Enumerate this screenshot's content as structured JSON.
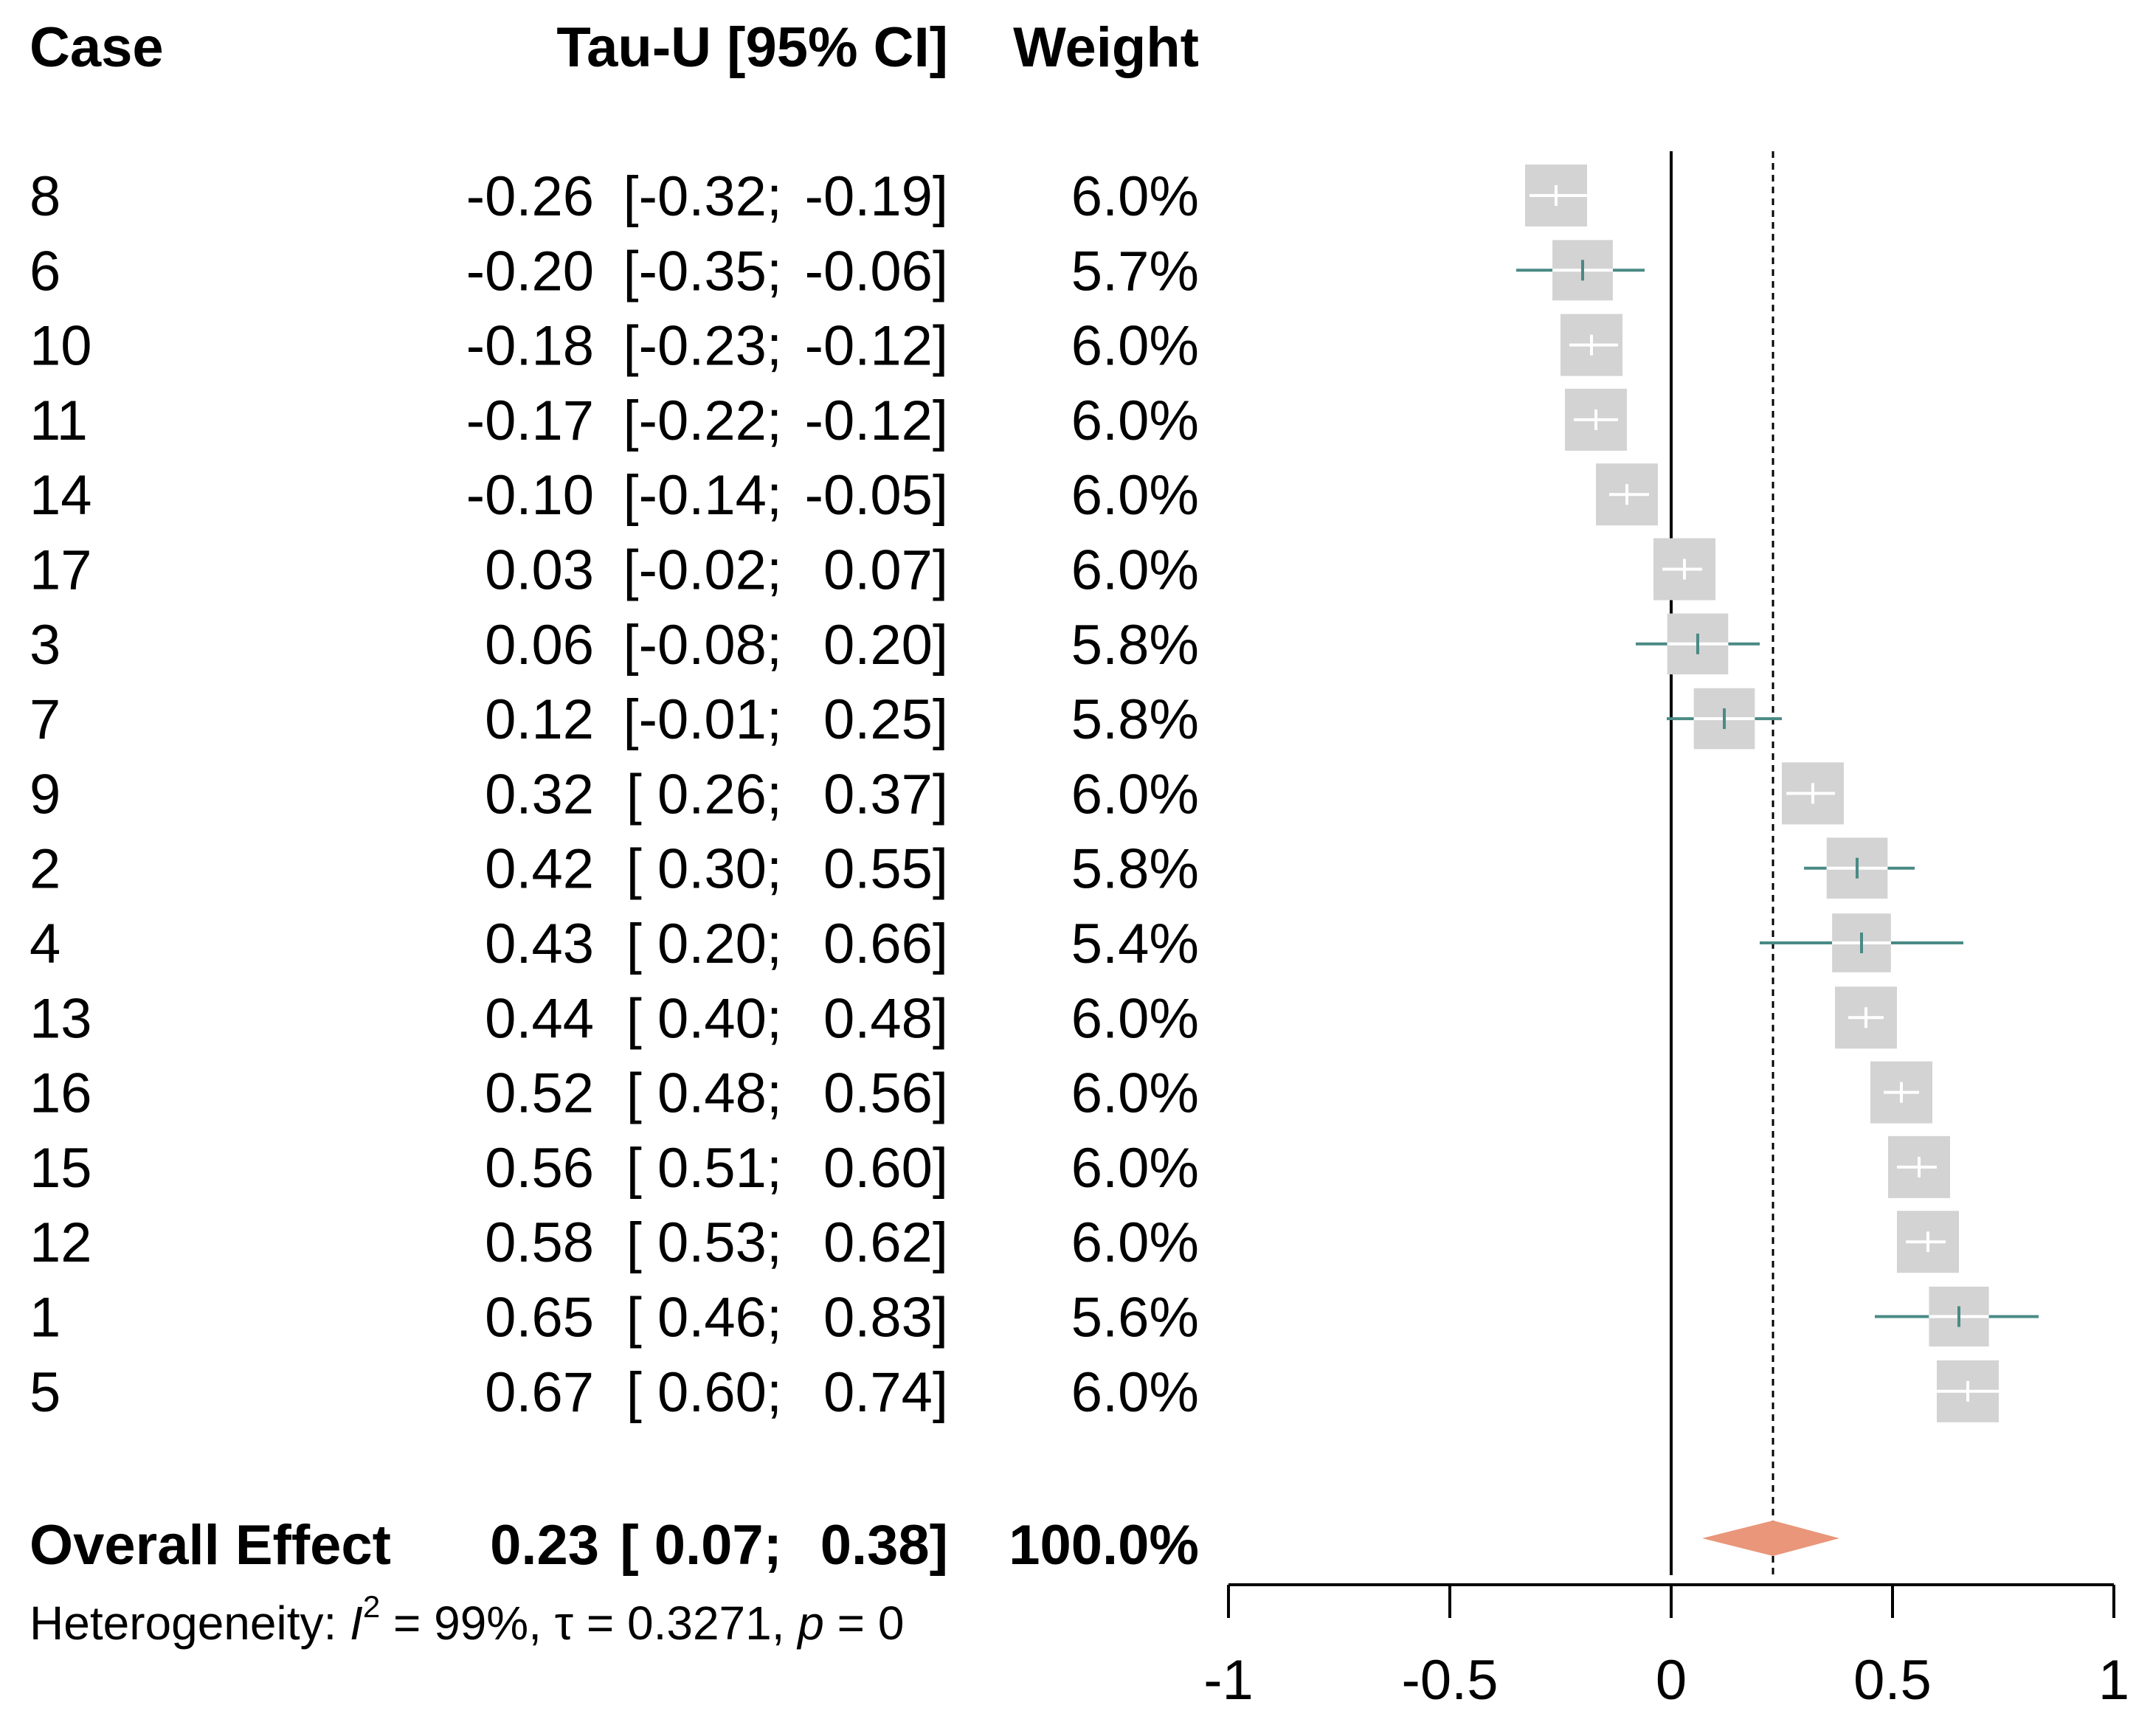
{
  "chart_data": {
    "type": "forest",
    "headers": {
      "case": "Case",
      "estimate": "Tau-U [95% CI]",
      "weight": "Weight"
    },
    "rows": [
      {
        "case": "8",
        "est": -0.26,
        "lo": -0.32,
        "hi": -0.19,
        "est_text": "-0.26",
        "lo_text": "[-0.32;",
        "hi_text": "-0.19]",
        "weight": "6.0%"
      },
      {
        "case": "6",
        "est": -0.2,
        "lo": -0.35,
        "hi": -0.06,
        "est_text": "-0.20",
        "lo_text": "[-0.35;",
        "hi_text": "-0.06]",
        "weight": "5.7%"
      },
      {
        "case": "10",
        "est": -0.18,
        "lo": -0.23,
        "hi": -0.12,
        "est_text": "-0.18",
        "lo_text": "[-0.23;",
        "hi_text": "-0.12]",
        "weight": "6.0%"
      },
      {
        "case": "11",
        "est": -0.17,
        "lo": -0.22,
        "hi": -0.12,
        "est_text": "-0.17",
        "lo_text": "[-0.22;",
        "hi_text": "-0.12]",
        "weight": "6.0%"
      },
      {
        "case": "14",
        "est": -0.1,
        "lo": -0.14,
        "hi": -0.05,
        "est_text": "-0.10",
        "lo_text": "[-0.14;",
        "hi_text": "-0.05]",
        "weight": "6.0%"
      },
      {
        "case": "17",
        "est": 0.03,
        "lo": -0.02,
        "hi": 0.07,
        "est_text": "0.03",
        "lo_text": "[-0.02;",
        "hi_text": "0.07]",
        "weight": "6.0%"
      },
      {
        "case": "3",
        "est": 0.06,
        "lo": -0.08,
        "hi": 0.2,
        "est_text": "0.06",
        "lo_text": "[-0.08;",
        "hi_text": "0.20]",
        "weight": "5.8%"
      },
      {
        "case": "7",
        "est": 0.12,
        "lo": -0.01,
        "hi": 0.25,
        "est_text": "0.12",
        "lo_text": "[-0.01;",
        "hi_text": "0.25]",
        "weight": "5.8%"
      },
      {
        "case": "9",
        "est": 0.32,
        "lo": 0.26,
        "hi": 0.37,
        "est_text": "0.32",
        "lo_text": "[ 0.26;",
        "hi_text": "0.37]",
        "weight": "6.0%"
      },
      {
        "case": "2",
        "est": 0.42,
        "lo": 0.3,
        "hi": 0.55,
        "est_text": "0.42",
        "lo_text": "[ 0.30;",
        "hi_text": "0.55]",
        "weight": "5.8%"
      },
      {
        "case": "4",
        "est": 0.43,
        "lo": 0.2,
        "hi": 0.66,
        "est_text": "0.43",
        "lo_text": "[ 0.20;",
        "hi_text": "0.66]",
        "weight": "5.4%"
      },
      {
        "case": "13",
        "est": 0.44,
        "lo": 0.4,
        "hi": 0.48,
        "est_text": "0.44",
        "lo_text": "[ 0.40;",
        "hi_text": "0.48]",
        "weight": "6.0%"
      },
      {
        "case": "16",
        "est": 0.52,
        "lo": 0.48,
        "hi": 0.56,
        "est_text": "0.52",
        "lo_text": "[ 0.48;",
        "hi_text": "0.56]",
        "weight": "6.0%"
      },
      {
        "case": "15",
        "est": 0.56,
        "lo": 0.51,
        "hi": 0.6,
        "est_text": "0.56",
        "lo_text": "[ 0.51;",
        "hi_text": "0.60]",
        "weight": "6.0%"
      },
      {
        "case": "12",
        "est": 0.58,
        "lo": 0.53,
        "hi": 0.62,
        "est_text": "0.58",
        "lo_text": "[ 0.53;",
        "hi_text": "0.62]",
        "weight": "6.0%"
      },
      {
        "case": "1",
        "est": 0.65,
        "lo": 0.46,
        "hi": 0.83,
        "est_text": "0.65",
        "lo_text": "[ 0.46;",
        "hi_text": "0.83]",
        "weight": "5.6%"
      },
      {
        "case": "5",
        "est": 0.67,
        "lo": 0.6,
        "hi": 0.74,
        "est_text": "0.67",
        "lo_text": "[ 0.60;",
        "hi_text": "0.74]",
        "weight": "6.0%"
      }
    ],
    "overall": {
      "label": "Overall Effect",
      "est": 0.23,
      "lo": 0.07,
      "hi": 0.38,
      "est_text": "0.23",
      "lo_text": "[ 0.07;",
      "hi_text": "0.38]",
      "weight": "100.0%"
    },
    "heterogeneity": {
      "prefix": "Heterogeneity: ",
      "i2_symbol": "I",
      "i2_exp": "2",
      "i2_rest": " = 99%, τ = 0.3271, ",
      "p_symbol": "p",
      "p_rest": " = 0"
    },
    "x_axis": {
      "range": [
        -1,
        1
      ],
      "ticks": [
        -1,
        -0.5,
        0,
        0.5,
        1
      ],
      "tick_labels": [
        "-1",
        "-0.5",
        "0",
        "0.5",
        "1"
      ],
      "reference_line": 0,
      "summary_line": 0.23
    },
    "colors": {
      "square": "#d3d3d3",
      "ci_line": "#4a8a85",
      "ci_inside": "#ffffff",
      "diamond": "#e9967a",
      "axis": "#000000"
    }
  }
}
